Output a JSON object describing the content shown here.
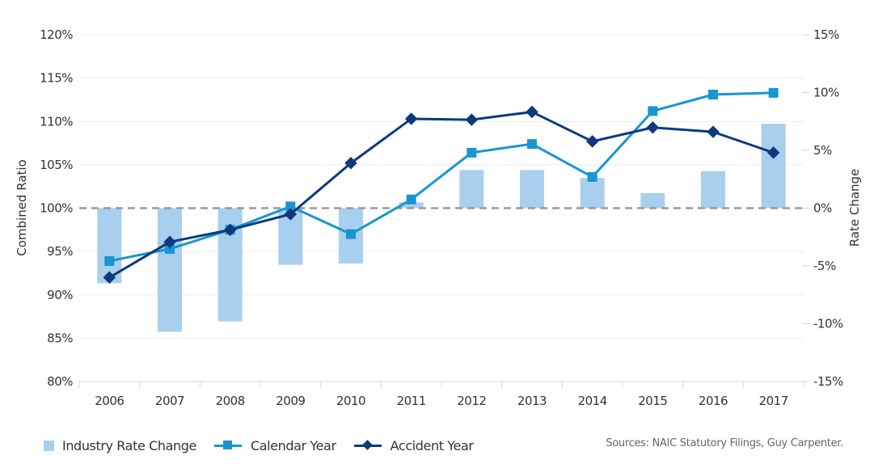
{
  "chart_data": {
    "type": "bar+line",
    "categories": [
      "2006",
      "2007",
      "2008",
      "2009",
      "2010",
      "2011",
      "2012",
      "2013",
      "2014",
      "2015",
      "2016",
      "2017"
    ],
    "series": [
      {
        "name": "Industry Rate Change",
        "type": "bar",
        "axis": "right",
        "values": [
          -6.5,
          -10.7,
          -9.8,
          -4.9,
          -4.8,
          0.5,
          3.3,
          3.3,
          2.6,
          1.3,
          3.2,
          7.3
        ]
      },
      {
        "name": "Calendar Year",
        "type": "line",
        "marker": "square",
        "axis": "left",
        "values": [
          93.9,
          95.3,
          97.5,
          100.2,
          97.0,
          101.0,
          106.4,
          107.4,
          103.6,
          111.2,
          113.1,
          113.3
        ]
      },
      {
        "name": "Accident Year",
        "type": "line",
        "marker": "diamond",
        "axis": "left",
        "values": [
          92.0,
          96.1,
          97.5,
          99.3,
          105.2,
          110.3,
          110.2,
          111.1,
          107.7,
          109.3,
          108.8,
          106.4
        ]
      }
    ],
    "ylabel": "Combined Ratio",
    "y2label": "Rate Change",
    "xlabel": "",
    "ylim": [
      80,
      120
    ],
    "y2lim": [
      -15,
      15
    ],
    "yticks": [
      "80%",
      "85%",
      "90%",
      "95%",
      "100%",
      "105%",
      "110%",
      "115%",
      "120%"
    ],
    "y2ticks": [
      "-15%",
      "-10%",
      "-5%",
      "0%",
      "5%",
      "10%",
      "15%"
    ],
    "reference_line": {
      "value": 100,
      "axis": "left",
      "style": "dashed"
    },
    "grid": true,
    "legend_position": "bottom-left",
    "colors": {
      "bar": "#a9cfee",
      "calendar_year": "#1896cf",
      "accident_year": "#0d3a7e",
      "reference": "#9a9a9a",
      "grid": "#ececec"
    }
  },
  "legend": {
    "items": [
      "Industry Rate Change",
      "Calendar Year",
      "Accident Year"
    ]
  },
  "source_note": "Sources: NAIC Statutory Filings, Guy Carpenter."
}
